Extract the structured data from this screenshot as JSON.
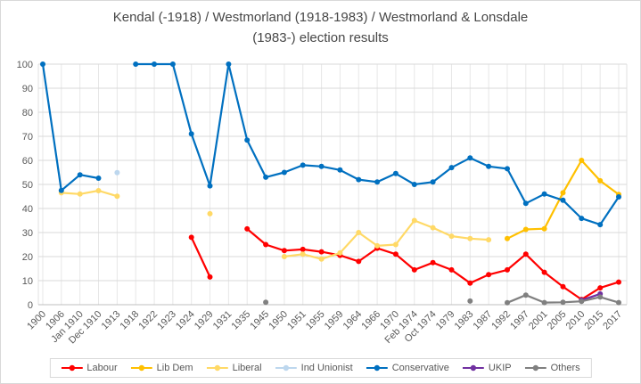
{
  "title": {
    "line1": "Kendal (-1918) / Westmorland (1918-1983) / Westmorland & Lonsdale",
    "line2": "(1983-) election results"
  },
  "chart_data": {
    "type": "line",
    "title": "Kendal (-1918) / Westmorland (1918-1983) / Westmorland & Lonsdale (1983-) election results",
    "xlabel": "",
    "ylabel": "",
    "ylim": [
      0,
      100
    ],
    "y_ticks": [
      0,
      10,
      20,
      30,
      40,
      50,
      60,
      70,
      80,
      90,
      100
    ],
    "grid": true,
    "legend_position": "bottom",
    "categories": [
      "1900",
      "1906",
      "Jan 1910",
      "Dec 1910",
      "1913",
      "1918",
      "1922",
      "1923",
      "1924",
      "1929",
      "1931",
      "1935",
      "1945",
      "1950",
      "1951",
      "1955",
      "1959",
      "1964",
      "1966",
      "1970",
      "Feb 1974",
      "Oct 1974",
      "1979",
      "1983",
      "1987",
      "1992",
      "1997",
      "2001",
      "2005",
      "2010",
      "2015",
      "2017"
    ],
    "series": [
      {
        "name": "Labour",
        "color": "#FF0000",
        "values": [
          null,
          null,
          null,
          null,
          null,
          null,
          null,
          null,
          28,
          11.5,
          null,
          31.5,
          25,
          22.5,
          23,
          22,
          20.5,
          18,
          23.5,
          21,
          14.5,
          17.5,
          14.5,
          9,
          12.5,
          14.5,
          21,
          13.5,
          7.5,
          2.2,
          7,
          9.4
        ]
      },
      {
        "name": "Lib Dem",
        "color": "#FFC000",
        "values": [
          null,
          null,
          null,
          null,
          null,
          null,
          null,
          null,
          null,
          null,
          null,
          null,
          null,
          null,
          null,
          null,
          null,
          null,
          null,
          null,
          null,
          null,
          null,
          null,
          null,
          27.5,
          31.3,
          31.6,
          46.5,
          60,
          51.5,
          45.8
        ]
      },
      {
        "name": "Liberal",
        "color": "#FFD966",
        "values": [
          null,
          46.5,
          46,
          47.4,
          45.1,
          null,
          null,
          null,
          null,
          37.8,
          null,
          null,
          null,
          20,
          21,
          19,
          21.5,
          30,
          24.5,
          25,
          35,
          32,
          28.5,
          27.5,
          27,
          null,
          null,
          null,
          null,
          null,
          null,
          null
        ]
      },
      {
        "name": "Ind Unionist",
        "color": "#BDD7EE",
        "values": [
          null,
          null,
          null,
          null,
          54.9,
          null,
          null,
          null,
          null,
          null,
          null,
          null,
          null,
          null,
          null,
          null,
          null,
          null,
          null,
          null,
          null,
          null,
          null,
          null,
          null,
          null,
          null,
          null,
          null,
          null,
          null,
          null
        ]
      },
      {
        "name": "Conservative",
        "color": "#0070C0",
        "values": [
          100,
          47.5,
          54,
          52.6,
          null,
          100,
          100,
          100,
          71,
          49.4,
          100,
          68.4,
          53,
          55,
          58,
          57.5,
          56,
          52,
          51,
          54.5,
          50,
          51,
          57,
          61,
          57.5,
          56.5,
          42.1,
          46,
          43.4,
          35.9,
          33.3,
          44.8
        ]
      },
      {
        "name": "UKIP",
        "color": "#7030A0",
        "values": [
          null,
          null,
          null,
          null,
          null,
          null,
          null,
          null,
          null,
          null,
          null,
          null,
          null,
          null,
          null,
          null,
          null,
          null,
          null,
          null,
          null,
          null,
          null,
          null,
          null,
          null,
          null,
          null,
          null,
          1.9,
          4.5,
          null
        ]
      },
      {
        "name": "Others",
        "color": "#808080",
        "values": [
          null,
          null,
          null,
          null,
          null,
          null,
          null,
          null,
          null,
          null,
          null,
          null,
          1,
          null,
          null,
          null,
          null,
          null,
          null,
          null,
          null,
          null,
          null,
          1.5,
          null,
          0.8,
          4,
          0.9,
          1,
          1.4,
          3.2,
          0.9
        ]
      }
    ]
  }
}
